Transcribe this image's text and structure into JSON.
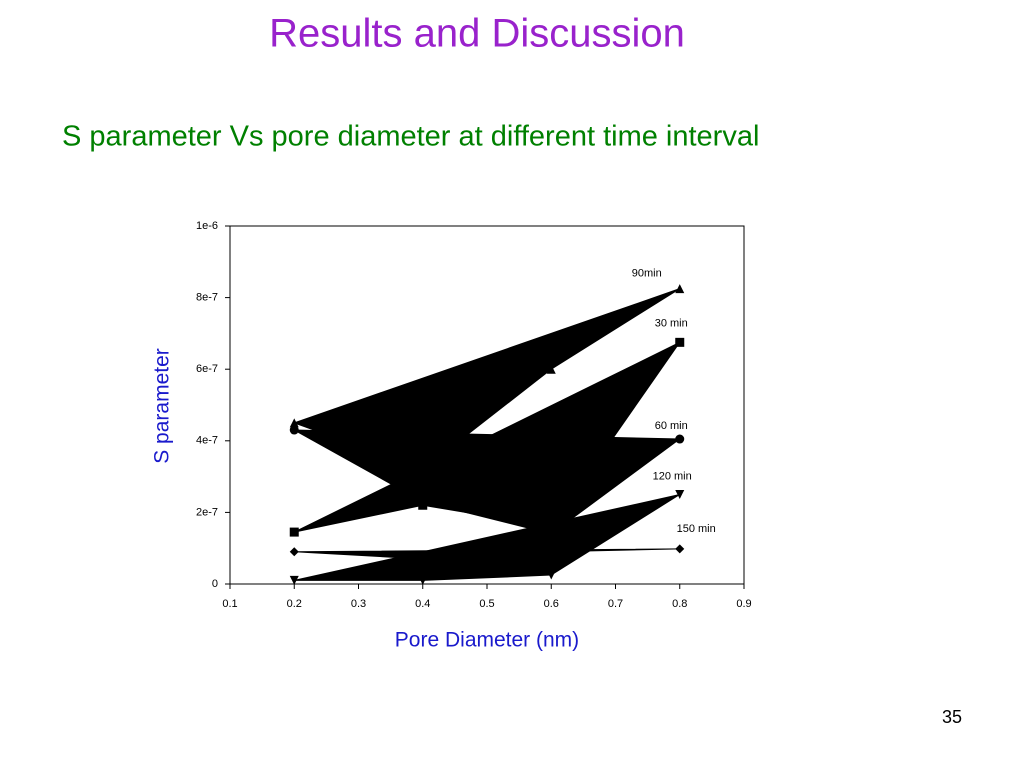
{
  "header": {
    "title": "Results and Discussion",
    "subtitle": "S parameter Vs pore diameter at different time interval"
  },
  "page_number": "35",
  "chart_data": {
    "type": "line",
    "fill": true,
    "x_label": "Pore Diameter (nm)",
    "y_label": "S parameter",
    "x": [
      0.2,
      0.4,
      0.6,
      0.8
    ],
    "xlim": [
      0.1,
      0.9
    ],
    "xticks": [
      0.1,
      0.2,
      0.3,
      0.4,
      0.5,
      0.6,
      0.7,
      0.8,
      0.9
    ],
    "ylim": [
      0,
      1e-06
    ],
    "yticks": [
      0,
      {
        "value": 2e-07,
        "label": "2e-7"
      },
      {
        "value": 4e-07,
        "label": "4e-7"
      },
      {
        "value": 6e-07,
        "label": "6e-7"
      },
      {
        "value": 8e-07,
        "label": "8e-7"
      },
      {
        "value": 1e-06,
        "label": "1e-6"
      }
    ],
    "series": [
      {
        "name": "90min",
        "color": "#000000",
        "marker": "triangle",
        "values": [
          4.5e-07,
          3.2e-07,
          6e-07,
          8.25e-07
        ]
      },
      {
        "name": "30 min",
        "color": "#000000",
        "marker": "square",
        "values": [
          1.45e-07,
          2.2e-07,
          1.6e-07,
          6.75e-07
        ]
      },
      {
        "name": "60 min",
        "color": "#000000",
        "marker": "circle",
        "values": [
          4.3e-07,
          2.3e-07,
          1.4e-07,
          4.05e-07
        ]
      },
      {
        "name": "120 min",
        "color": "#000000",
        "marker": "triangle-down",
        "values": [
          1e-08,
          1e-08,
          2.5e-08,
          2.5e-07
        ]
      },
      {
        "name": "150 min",
        "color": "#000000",
        "marker": "diamond",
        "values": [
          9e-08,
          7e-08,
          9e-08,
          9.8e-08
        ]
      }
    ]
  }
}
